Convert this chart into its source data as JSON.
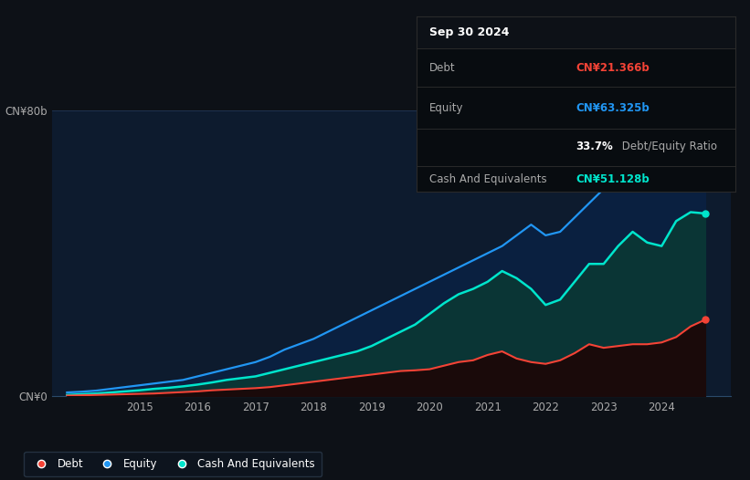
{
  "bg_color": "#0d1117",
  "plot_bg_color": "#0d1b2e",
  "grid_color": "#253d5e",
  "years": [
    2013.75,
    2014.0,
    2014.25,
    2014.5,
    2014.75,
    2015.0,
    2015.25,
    2015.5,
    2015.75,
    2016.0,
    2016.25,
    2016.5,
    2016.75,
    2017.0,
    2017.25,
    2017.5,
    2017.75,
    2018.0,
    2018.25,
    2018.5,
    2018.75,
    2019.0,
    2019.25,
    2019.5,
    2019.75,
    2020.0,
    2020.25,
    2020.5,
    2020.75,
    2021.0,
    2021.25,
    2021.5,
    2021.75,
    2022.0,
    2022.25,
    2022.5,
    2022.75,
    2023.0,
    2023.25,
    2023.5,
    2023.75,
    2024.0,
    2024.25,
    2024.5,
    2024.75
  ],
  "equity": [
    1.0,
    1.2,
    1.5,
    2.0,
    2.5,
    3.0,
    3.5,
    4.0,
    4.5,
    5.5,
    6.5,
    7.5,
    8.5,
    9.5,
    11.0,
    13.0,
    14.5,
    16.0,
    18.0,
    20.0,
    22.0,
    24.0,
    26.0,
    28.0,
    30.0,
    32.0,
    34.0,
    36.0,
    38.0,
    40.0,
    42.0,
    45.0,
    48.0,
    45.0,
    46.0,
    50.0,
    54.0,
    58.0,
    66.0,
    73.0,
    70.0,
    65.0,
    64.0,
    63.5,
    63.325
  ],
  "cash": [
    0.3,
    0.5,
    0.7,
    1.0,
    1.3,
    1.6,
    2.0,
    2.3,
    2.7,
    3.2,
    3.8,
    4.5,
    5.0,
    5.5,
    6.5,
    7.5,
    8.5,
    9.5,
    10.5,
    11.5,
    12.5,
    14.0,
    16.0,
    18.0,
    20.0,
    23.0,
    26.0,
    28.5,
    30.0,
    32.0,
    35.0,
    33.0,
    30.0,
    25.5,
    27.0,
    32.0,
    37.0,
    37.0,
    42.0,
    46.0,
    43.0,
    42.0,
    49.0,
    51.5,
    51.128
  ],
  "debt": [
    0.1,
    0.2,
    0.3,
    0.4,
    0.5,
    0.6,
    0.7,
    0.9,
    1.1,
    1.3,
    1.6,
    1.8,
    2.0,
    2.2,
    2.5,
    3.0,
    3.5,
    4.0,
    4.5,
    5.0,
    5.5,
    6.0,
    6.5,
    7.0,
    7.2,
    7.5,
    8.5,
    9.5,
    10.0,
    11.5,
    12.5,
    10.5,
    9.5,
    9.0,
    10.0,
    12.0,
    14.5,
    13.5,
    14.0,
    14.5,
    14.5,
    15.0,
    16.5,
    19.5,
    21.366
  ],
  "equity_color": "#2196f3",
  "equity_fill_color": "#0a2040",
  "cash_color": "#00e5cc",
  "cash_fill_color": "#0a3535",
  "debt_color": "#f44336",
  "debt_fill_color": "#1a0a0a",
  "ylim": [
    0,
    80
  ],
  "ytick_labels": [
    "CN¥0",
    "CN¥80b"
  ],
  "ytick_values": [
    0,
    80
  ],
  "xtick_labels": [
    "2015",
    "2016",
    "2017",
    "2018",
    "2019",
    "2020",
    "2021",
    "2022",
    "2023",
    "2024"
  ],
  "xtick_values": [
    2015,
    2016,
    2017,
    2018,
    2019,
    2020,
    2021,
    2022,
    2023,
    2024
  ],
  "info_title": "Sep 30 2024",
  "info_debt_label": "Debt",
  "info_debt_value": "CN¥21.366b",
  "info_equity_label": "Equity",
  "info_equity_value": "CN¥63.325b",
  "info_ratio": "33.7%",
  "info_ratio_label": " Debt/Equity Ratio",
  "info_cash_label": "Cash And Equivalents",
  "info_cash_value": "CN¥51.128b",
  "legend_labels": [
    "Debt",
    "Equity",
    "Cash And Equivalents"
  ],
  "legend_colors": [
    "#f44336",
    "#2196f3",
    "#00e5cc"
  ]
}
